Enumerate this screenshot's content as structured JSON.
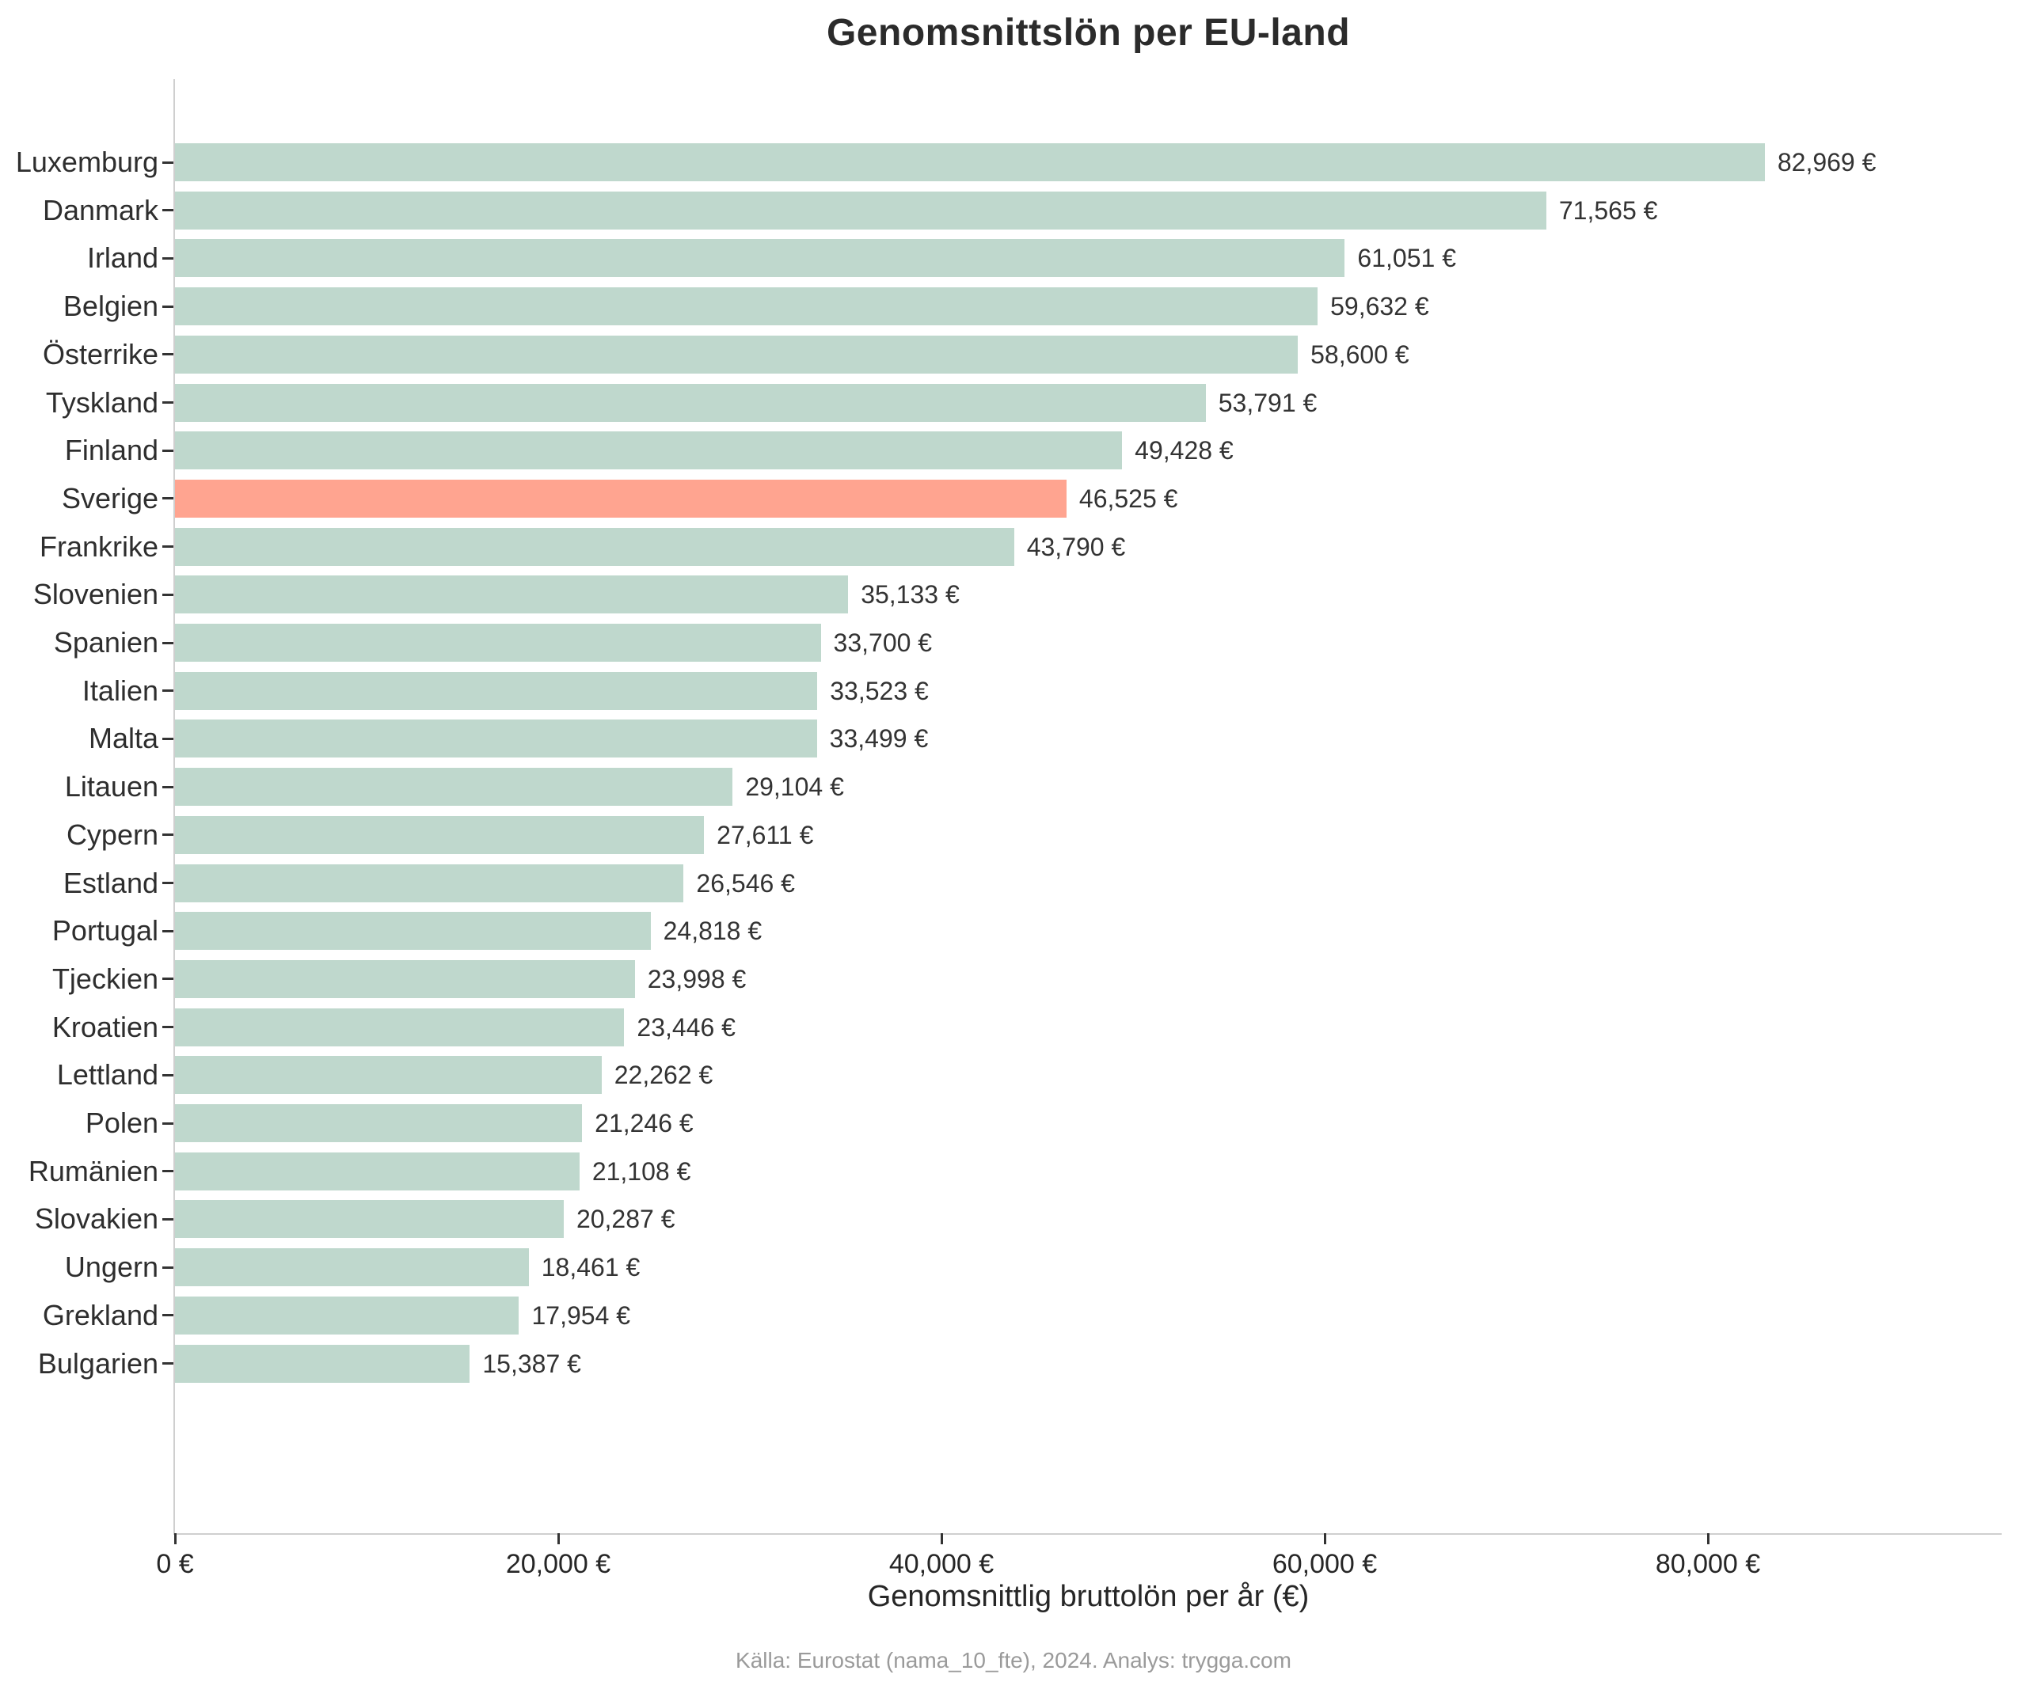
{
  "title": "Genomsnittslön per EU-land",
  "footer": "Källa: Eurostat (nama_10_fte), 2024. Analys: trygga.com",
  "colors": {
    "bar": "#bfd8cd",
    "highlight": "#ffa490",
    "spine": "#cfcfcf",
    "text": "#262626",
    "muted_text": "#9a9a9a"
  },
  "chart_data": {
    "type": "bar",
    "orientation": "horizontal",
    "title": "Genomsnittslön per EU-land",
    "xlabel": "Genomsnittlig bruttolön per år (€)",
    "ylabel": "",
    "categories": [
      "Luxemburg",
      "Danmark",
      "Irland",
      "Belgien",
      "Österrike",
      "Tyskland",
      "Finland",
      "Sverige",
      "Frankrike",
      "Slovenien",
      "Spanien",
      "Italien",
      "Malta",
      "Litauen",
      "Cypern",
      "Estland",
      "Portugal",
      "Tjeckien",
      "Kroatien",
      "Lettland",
      "Polen",
      "Rumänien",
      "Slovakien",
      "Ungern",
      "Grekland",
      "Bulgarien"
    ],
    "values": [
      82969,
      71565,
      61051,
      59632,
      58600,
      53791,
      49428,
      46525,
      43790,
      35133,
      33700,
      33523,
      33499,
      29104,
      27611,
      26546,
      24818,
      23998,
      23446,
      22262,
      21246,
      21108,
      20287,
      18461,
      17954,
      15387
    ],
    "value_labels": [
      "82,969 €",
      "71,565 €",
      "61,051 €",
      "59,632 €",
      "58,600 €",
      "53,791 €",
      "49,428 €",
      "46,525 €",
      "43,790 €",
      "35,133 €",
      "33,700 €",
      "33,523 €",
      "33,499 €",
      "29,104 €",
      "27,611 €",
      "26,546 €",
      "24,818 €",
      "23,998 €",
      "23,446 €",
      "22,262 €",
      "21,246 €",
      "21,108 €",
      "20,287 €",
      "18,461 €",
      "17,954 €",
      "15,387 €"
    ],
    "highlight_category": "Sverige",
    "xlim": [
      0,
      95330
    ],
    "x_ticks": [
      0,
      20000,
      40000,
      60000,
      80000
    ],
    "x_tick_labels": [
      "0 €",
      "20,000 €",
      "40,000 €",
      "60,000 €",
      "80,000 €"
    ],
    "grid": false,
    "legend": null
  }
}
